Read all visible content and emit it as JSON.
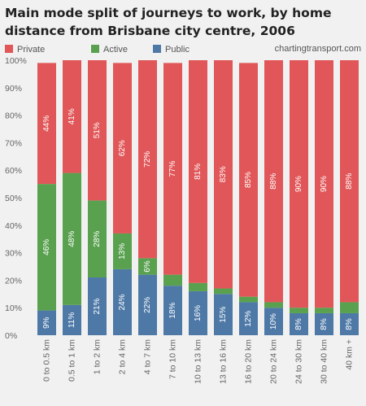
{
  "chart_data": {
    "type": "bar",
    "stacked": true,
    "title_lines": [
      "Main mode split of journeys to work, by home",
      "distance from Brisbane city centre, 2006"
    ],
    "source": "chartingtransport.com",
    "legend_position": "top",
    "categories": [
      "0 to 0.5 km",
      "0.5 to 1 km",
      "1 to 2 km",
      "2 to 4 km",
      "4 to 7 km",
      "7 to 10 km",
      "10 to 13 km",
      "13 to 16 km",
      "16 to 20 km",
      "20 to 24 km",
      "24 to 30 km",
      "30 to 40 km",
      "40 km +"
    ],
    "ylim": [
      0,
      100
    ],
    "yticks": [
      "0%",
      "10%",
      "20%",
      "30%",
      "40%",
      "50%",
      "60%",
      "70%",
      "80%",
      "90%",
      "100%"
    ],
    "grid": false,
    "series": [
      {
        "name": "Public",
        "color": "#4e79a7",
        "values": [
          9,
          11,
          21,
          24,
          22,
          18,
          16,
          15,
          12,
          10,
          8,
          8,
          8
        ],
        "labels": [
          "9%",
          "11%",
          "21%",
          "24%",
          "22%",
          "18%",
          "16%",
          "15%",
          "12%",
          "10%",
          "8%",
          "8%",
          "8%"
        ]
      },
      {
        "name": "Active",
        "color": "#59a14f",
        "values": [
          46,
          48,
          28,
          13,
          6,
          4,
          3,
          2,
          2,
          2,
          2,
          2,
          4
        ],
        "labels": [
          "46%",
          "48%",
          "28%",
          "13%",
          "6%",
          "",
          "",
          "",
          "",
          "",
          "",
          "",
          ""
        ]
      },
      {
        "name": "Private",
        "color": "#e15759",
        "values": [
          44,
          41,
          51,
          62,
          72,
          77,
          81,
          83,
          85,
          88,
          90,
          90,
          88
        ],
        "labels": [
          "44%",
          "41%",
          "51%",
          "62%",
          "72%",
          "77%",
          "81%",
          "83%",
          "85%",
          "88%",
          "90%",
          "90%",
          "88%"
        ]
      }
    ],
    "legend_order": [
      "Private",
      "Active",
      "Public"
    ]
  }
}
